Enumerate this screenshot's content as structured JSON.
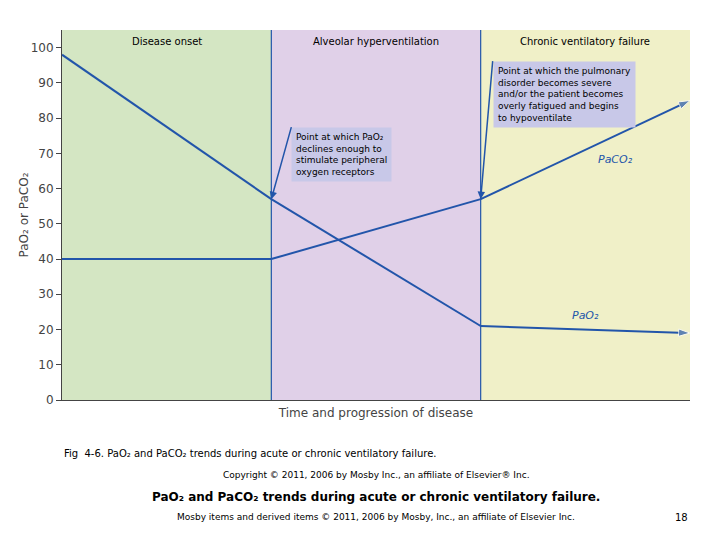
{
  "chart_data": {
    "type": "line",
    "title": "PaO₂ and PaCO₂ trends during acute or chronic ventilatory failure.",
    "subtitle": "Mosby items and derived items © 2011, 2006 by Mosby, Inc., an affiliate of Elsevier Inc.",
    "caption": "Fig  4-6. PaO₂ and PaCO₂ trends during acute or chronic ventilatory failure.",
    "copyright": "Copyright © 2011, 2006 by Mosby Inc., an affiliate of Elsevier® Inc.",
    "page_label": "18",
    "x_label": "Time and progression of disease",
    "y_label": "PaO₂ or PaCO₂",
    "xlim": [
      0,
      3
    ],
    "xticks": [],
    "ylim": [
      0,
      105
    ],
    "yticks": [
      0,
      10,
      20,
      30,
      40,
      50,
      60,
      70,
      80,
      90,
      100
    ],
    "tick_labels": "y",
    "grid": false,
    "series": [
      {
        "name": "PaO₂",
        "color": "#2255aa",
        "x": [
          0,
          1,
          2,
          3
        ],
        "values": [
          98,
          57,
          21,
          19
        ]
      },
      {
        "name": "PaCO₂",
        "color": "#2255aa",
        "x": [
          0,
          1,
          2,
          3
        ],
        "values": [
          40,
          40,
          57,
          85
        ]
      }
    ],
    "sections": [
      {
        "label": "Disease onset",
        "x": [
          0,
          1
        ],
        "color": "#d4e6c3"
      },
      {
        "label": "Alveolar hyperventilation",
        "x": [
          1,
          2
        ],
        "color": "#e0d0e8"
      },
      {
        "label": "Chronic ventilatory failure",
        "x": [
          2,
          3
        ],
        "color": "#f0f0c8"
      }
    ],
    "dividers": [
      1,
      2
    ],
    "divider_color": "#2255aa",
    "annotations": [
      {
        "text": "Point at which PaO₂\ndeclines enough to\nstimulate peripheral\noxygen receptors",
        "x": 1,
        "y": 57,
        "color": "#c8c8e8",
        "arrow_color": "#2255aa"
      },
      {
        "text": "Point at which the pulmonary\ndisorder becomes severe\nand/or the patient becomes\noverly fatigued and begins\nto hypoventilate",
        "x": 2,
        "y": 57,
        "color": "#c8c8e8",
        "arrow_color": "#2255aa"
      }
    ]
  }
}
